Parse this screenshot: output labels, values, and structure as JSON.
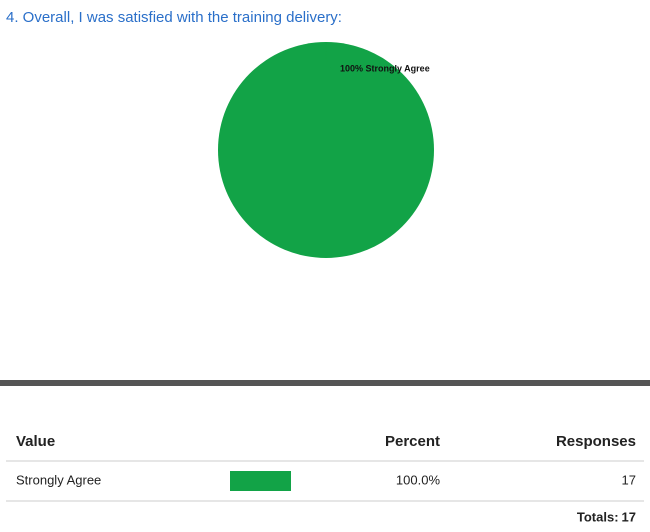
{
  "chart_data": {
    "type": "pie",
    "title": "4. Overall, I was satisfied with the training delivery:",
    "categories": [
      "Strongly Agree"
    ],
    "values": [
      100
    ],
    "value_labels": [
      "100% Strongly Agree"
    ],
    "colors": [
      "#12a347"
    ]
  },
  "table": {
    "columns": [
      "Value",
      "Percent",
      "Responses"
    ],
    "rows": [
      {
        "value": "Strongly Agree",
        "percent": 100.0,
        "percent_label": "100.0%",
        "responses": 17
      }
    ],
    "totals_label": "Totals:",
    "total": 17
  }
}
